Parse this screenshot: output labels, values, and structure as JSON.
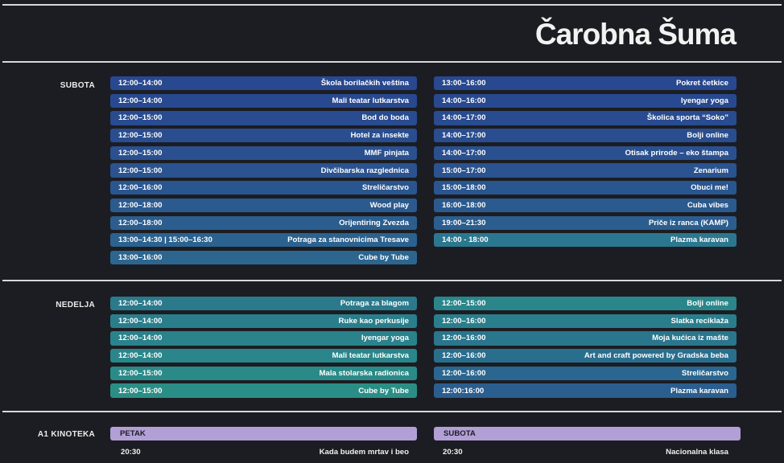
{
  "title": "Čarobna Šuma",
  "subota": {
    "label": "SUBOTA",
    "left": [
      {
        "time": "12:00–14:00",
        "name": "Škola borilačkih veština",
        "color": "#28488f"
      },
      {
        "time": "12:00–14:00",
        "name": "Mali teatar lutkarstva",
        "color": "#28498f"
      },
      {
        "time": "12:00–15:00",
        "name": "Bod do boda",
        "color": "#294b8f"
      },
      {
        "time": "12:00–15:00",
        "name": "Hotel za insekte",
        "color": "#294d8f"
      },
      {
        "time": "12:00–15:00",
        "name": "MMF pinjata",
        "color": "#2a508f"
      },
      {
        "time": "12:00–15:00",
        "name": "Divčibarska razglednica",
        "color": "#2a538f"
      },
      {
        "time": "12:00–16:00",
        "name": "Streličarstvo",
        "color": "#2a568f"
      },
      {
        "time": "12:00–18:00",
        "name": "Wood play",
        "color": "#2b5a8f"
      },
      {
        "time": "12:00–18:00",
        "name": "Orijentiring Zvezda",
        "color": "#2b5e8f"
      },
      {
        "time": "13:00–14:30 | 15:00–16:30",
        "name": "Potraga za stanovnicima Tresave",
        "color": "#2b628f"
      },
      {
        "time": "13:00–16:00",
        "name": "Cube by Tube",
        "color": "#2c668f"
      }
    ],
    "right": [
      {
        "time": "13:00–16:00",
        "name": "Pokret četkice",
        "color": "#28488f"
      },
      {
        "time": "14:00–16:00",
        "name": "Iyengar yoga",
        "color": "#28498f"
      },
      {
        "time": "14:00–17:00",
        "name": "Školica sporta “Soko”",
        "color": "#294b8f"
      },
      {
        "time": "14:00–17:00",
        "name": "Bolji online",
        "color": "#294d8f"
      },
      {
        "time": "14:00–17:00",
        "name": "Otisak prirode – eko štampa",
        "color": "#2a508f"
      },
      {
        "time": "15:00–17:00",
        "name": "Zenarium",
        "color": "#2a538f"
      },
      {
        "time": "15:00–18:00",
        "name": "Obuci me!",
        "color": "#2a568f"
      },
      {
        "time": "16:00–18:00",
        "name": "Cuba vibes",
        "color": "#2b5a8f"
      },
      {
        "time": "19:00–21:30",
        "name": "Priče iz ranca (KAMP)",
        "color": "#2b5e8f"
      },
      {
        "time": "14:00 - 18:00",
        "name": "Plazma karavan",
        "color": "#2b778f"
      }
    ]
  },
  "nedelja": {
    "label": "NEDELJA",
    "left": [
      {
        "time": "12:00–14:00",
        "name": "Potraga za blagom",
        "color": "#2a7a8c"
      },
      {
        "time": "12:00–14:00",
        "name": "Ruke kao perkusije",
        "color": "#2a7e8c"
      },
      {
        "time": "12:00–14:00",
        "name": "Iyengar yoga",
        "color": "#2a828b"
      },
      {
        "time": "12:00–14:00",
        "name": "Mali teatar lutkarstva",
        "color": "#2a868a"
      },
      {
        "time": "12:00–15:00",
        "name": "Mala stolarska radionica",
        "color": "#2a8a88"
      },
      {
        "time": "12:00–15:00",
        "name": "Cube by Tube",
        "color": "#2b8e86"
      }
    ],
    "right": [
      {
        "time": "12:00–15:00",
        "name": "Bolji online",
        "color": "#2a868a"
      },
      {
        "time": "12:00–16:00",
        "name": "Slatka reciklaža",
        "color": "#2a7e8c"
      },
      {
        "time": "12:00–16:00",
        "name": "Moja kućica iz mašte",
        "color": "#2a768d"
      },
      {
        "time": "12:00–16:00",
        "name": "Art and craft powered by Gradska beba",
        "color": "#2a6e8e"
      },
      {
        "time": "12:00–16:00",
        "name": "Streličarstvo",
        "color": "#2a668f"
      },
      {
        "time": "12:00:16:00",
        "name": "Plazma karavan",
        "color": "#2a5e8f"
      }
    ]
  },
  "kinoteka": {
    "label": "A1 KINOTEKA",
    "left": {
      "day": "PETAK",
      "time": "20:30",
      "name": "Kada budem mrtav i beo"
    },
    "right": {
      "day": "SUBOTA",
      "time": "20:30",
      "name": "Nacionalna klasa"
    },
    "bar_color": "#b29fd6"
  }
}
